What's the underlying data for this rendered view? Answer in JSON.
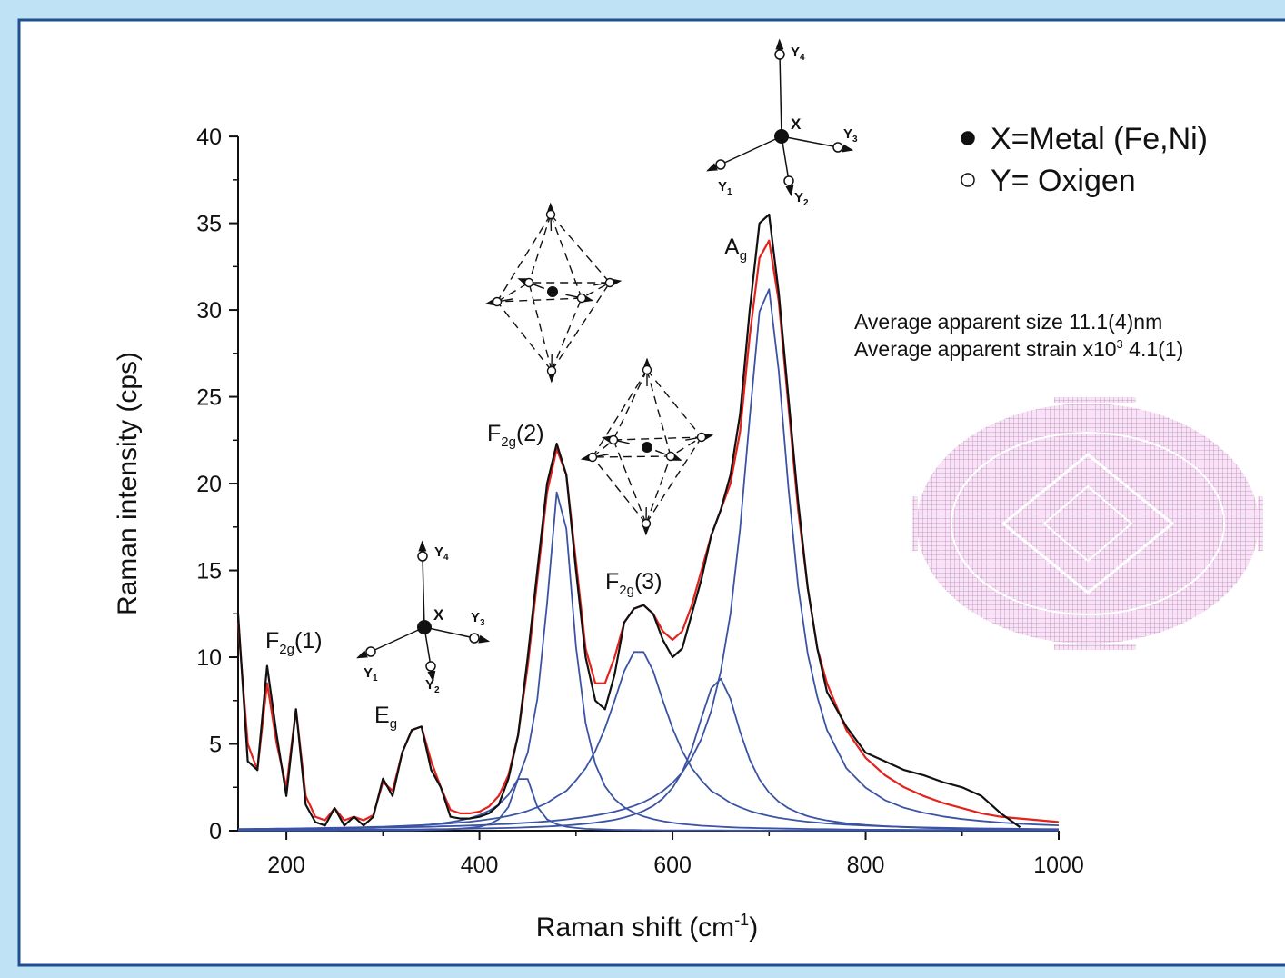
{
  "chart_data": {
    "type": "line",
    "xlabel": {
      "text": "Raman shift (cm",
      "sup": "-1",
      "suffix": ")"
    },
    "ylabel": "Raman intensity (cps)",
    "xlim": [
      150,
      1000
    ],
    "ylim": [
      0,
      41
    ],
    "xticks": [
      200,
      400,
      600,
      800,
      1000
    ],
    "xminorticks": [
      300,
      500,
      700,
      900
    ],
    "yticks": [
      0,
      5,
      10,
      15,
      20,
      25,
      30,
      35,
      40
    ],
    "yminorticks": [
      2.5,
      7.5,
      12.5,
      17.5,
      22.5,
      27.5,
      32.5,
      37.5
    ],
    "grid": false,
    "x": [
      150,
      160,
      170,
      180,
      190,
      200,
      210,
      220,
      230,
      240,
      250,
      260,
      270,
      280,
      290,
      300,
      310,
      320,
      330,
      340,
      350,
      360,
      370,
      380,
      390,
      400,
      410,
      420,
      430,
      440,
      450,
      460,
      470,
      480,
      490,
      500,
      510,
      520,
      530,
      540,
      550,
      560,
      570,
      580,
      590,
      600,
      610,
      620,
      630,
      640,
      650,
      660,
      670,
      680,
      690,
      700,
      710,
      720,
      730,
      740,
      750,
      760,
      780,
      800,
      820,
      840,
      860,
      880,
      900,
      920,
      940,
      960,
      980,
      1000
    ],
    "series": [
      {
        "color": "#3b53a4",
        "values": [
          0.09,
          0.1,
          0.1,
          0.1,
          0.11,
          0.11,
          0.12,
          0.12,
          0.13,
          0.13,
          0.14,
          0.15,
          0.15,
          0.16,
          0.17,
          0.18,
          0.19,
          0.2,
          0.21,
          0.22,
          0.23,
          0.25,
          0.26,
          0.28,
          0.3,
          0.32,
          0.34,
          0.37,
          0.39,
          0.43,
          0.46,
          0.5,
          0.54,
          0.59,
          0.65,
          0.72,
          0.79,
          0.88,
          0.98,
          1.1,
          1.25,
          1.43,
          1.65,
          1.93,
          2.29,
          2.76,
          3.36,
          4.2,
          5.3,
          6.9,
          9.2,
          12.5,
          17.4,
          23.8,
          29.9,
          31.2,
          26.5,
          19.8,
          14.1,
          10.2,
          7.7,
          5.8,
          3.6,
          2.48,
          1.76,
          1.32,
          1.03,
          0.82,
          0.67,
          0.56,
          0.47,
          0.4,
          0.35,
          0.31
        ]
      },
      {
        "color": "#3b53a4",
        "values": [
          0.03,
          0.03,
          0.04,
          0.04,
          0.04,
          0.04,
          0.04,
          0.04,
          0.05,
          0.05,
          0.05,
          0.05,
          0.05,
          0.06,
          0.06,
          0.06,
          0.07,
          0.07,
          0.08,
          0.08,
          0.09,
          0.09,
          0.1,
          0.11,
          0.12,
          0.13,
          0.14,
          0.15,
          0.16,
          0.18,
          0.2,
          0.22,
          0.24,
          0.27,
          0.31,
          0.35,
          0.4,
          0.46,
          0.54,
          0.63,
          0.76,
          0.93,
          1.14,
          1.43,
          1.86,
          2.47,
          3.38,
          4.7,
          6.5,
          8.2,
          8.76,
          7.6,
          5.7,
          4.1,
          2.96,
          2.2,
          1.67,
          1.3,
          1.04,
          0.84,
          0.7,
          0.59,
          0.43,
          0.33,
          0.26,
          0.21,
          0.17,
          0.14,
          0.12,
          0.11,
          0.09,
          0.08,
          0.07,
          0.06
        ]
      },
      {
        "color": "#3b53a4",
        "values": [
          0.1,
          0.1,
          0.11,
          0.11,
          0.12,
          0.12,
          0.13,
          0.14,
          0.15,
          0.16,
          0.17,
          0.18,
          0.19,
          0.2,
          0.22,
          0.23,
          0.25,
          0.27,
          0.3,
          0.32,
          0.35,
          0.39,
          0.42,
          0.47,
          0.52,
          0.58,
          0.66,
          0.74,
          0.85,
          0.98,
          1.14,
          1.35,
          1.6,
          1.97,
          2.3,
          2.9,
          3.6,
          4.6,
          5.9,
          7.5,
          9.2,
          10.3,
          10.3,
          9.2,
          7.5,
          5.9,
          4.6,
          3.6,
          2.9,
          2.3,
          1.97,
          1.6,
          1.35,
          1.14,
          0.98,
          0.85,
          0.74,
          0.66,
          0.58,
          0.52,
          0.47,
          0.42,
          0.35,
          0.3,
          0.25,
          0.22,
          0.19,
          0.17,
          0.15,
          0.13,
          0.12,
          0.11,
          0.1,
          0.09
        ]
      },
      {
        "color": "#3b53a4",
        "values": [
          0.06,
          0.06,
          0.07,
          0.07,
          0.08,
          0.08,
          0.09,
          0.09,
          0.1,
          0.11,
          0.12,
          0.13,
          0.14,
          0.16,
          0.17,
          0.19,
          0.21,
          0.24,
          0.27,
          0.31,
          0.36,
          0.42,
          0.5,
          0.59,
          0.72,
          0.9,
          1.15,
          1.5,
          2.07,
          2.98,
          4.5,
          7.6,
          13.1,
          19.5,
          17.4,
          10.6,
          6.2,
          3.83,
          2.56,
          1.82,
          1.35,
          1.04,
          0.82,
          0.67,
          0.55,
          0.46,
          0.39,
          0.34,
          0.29,
          0.26,
          0.23,
          0.2,
          0.18,
          0.17,
          0.15,
          0.14,
          0.13,
          0.12,
          0.11,
          0.1,
          0.09,
          0.09,
          0.07,
          0.06,
          0.06,
          0.05,
          0.04,
          0.04,
          0.04,
          0.03,
          0.03,
          0.03,
          0.03,
          0.03
        ]
      },
      {
        "color": "#3b53a4",
        "values": [
          0.01,
          0.01,
          0.01,
          0.01,
          0.01,
          0.01,
          0.01,
          0.01,
          0.01,
          0.01,
          0.01,
          0.02,
          0.02,
          0.02,
          0.02,
          0.02,
          0.02,
          0.02,
          0.02,
          0.03,
          0.05,
          0.07,
          0.09,
          0.12,
          0.16,
          0.23,
          0.37,
          0.65,
          1.37,
          2.98,
          2.98,
          1.37,
          0.66,
          0.37,
          0.23,
          0.16,
          0.11,
          0.09,
          0.07,
          0.05,
          0.04,
          0.04,
          0.03,
          0.03,
          0.02,
          0.02,
          0.02,
          0.02,
          0.02,
          0.02,
          0.02,
          0.01,
          0.01,
          0.01,
          0.01,
          0.01,
          0.01,
          0.01,
          0.01,
          0.01,
          0.01,
          0.01,
          0.01,
          0.01,
          0.01,
          0.01,
          0.01,
          0.01,
          0.01,
          0.01,
          0.01,
          0.01,
          0.01,
          0.01
        ]
      },
      {
        "color": "#e3221c",
        "values": [
          12,
          5,
          3.5,
          8.5,
          5,
          2.5,
          7,
          2,
          0.8,
          0.6,
          1.3,
          0.6,
          0.8,
          0.6,
          0.9,
          2.8,
          2.3,
          4.5,
          5.8,
          6,
          4,
          2.5,
          1.2,
          1,
          1,
          1.1,
          1.4,
          2,
          3.2,
          5.5,
          9.5,
          14.5,
          19.5,
          22,
          20.5,
          15.5,
          10.5,
          8.5,
          8.5,
          10,
          12,
          12.8,
          13,
          12.5,
          11.5,
          11,
          11.5,
          13,
          15,
          17,
          18.5,
          20,
          23,
          28.5,
          33,
          34,
          30.5,
          24.5,
          18.5,
          14,
          10.5,
          8.5,
          5.8,
          4.2,
          3.2,
          2.5,
          2,
          1.6,
          1.3,
          1,
          0.8,
          0.7,
          0.6,
          0.5
        ]
      },
      {
        "color": "#111111",
        "values": [
          12.5,
          4,
          3.5,
          9.5,
          5.5,
          2,
          7,
          1.5,
          0.5,
          0.3,
          1.3,
          0.3,
          0.8,
          0.3,
          0.8,
          3,
          2,
          4.5,
          5.8,
          6,
          3.5,
          2.5,
          0.8,
          0.7,
          0.7,
          0.8,
          1,
          1.5,
          3,
          5.5,
          10,
          15,
          20,
          22.3,
          20.5,
          15,
          10,
          7.5,
          7,
          9,
          12,
          12.8,
          13,
          12.5,
          11,
          10,
          10.5,
          12.5,
          14.5,
          17,
          18.5,
          20.5,
          24,
          30,
          35,
          35.5,
          31,
          25,
          19,
          14,
          10.5,
          8,
          6,
          4.5,
          4,
          3.5,
          3.2,
          2.8,
          2.5,
          2,
          1,
          0.2,
          null,
          null
        ]
      }
    ],
    "annotations": [
      {
        "text": "F",
        "sub": "2g",
        "suffix": "(1)"
      },
      {
        "text": "E",
        "sub": "g"
      },
      {
        "text": "F",
        "sub": "2g",
        "suffix": "(2)"
      },
      {
        "text": "F",
        "sub": "2g",
        "suffix": "(3)"
      },
      {
        "text": "A",
        "sub": "g"
      }
    ],
    "key": [
      "X=Metal (Fe,Ni)",
      "Y= Oxigen"
    ],
    "notes": [
      {
        "text": "Average apparent size 11.1(4)nm"
      },
      {
        "text": "Average apparent strain x10",
        "sup": "3",
        "suffix": " 4.1(1)"
      }
    ],
    "diagram_labels": {
      "center": "X",
      "ligand": "Y",
      "indices": [
        "1",
        "2",
        "3",
        "4"
      ]
    }
  }
}
